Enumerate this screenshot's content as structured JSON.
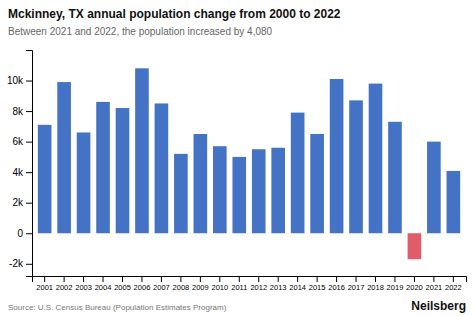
{
  "chart_data": {
    "type": "bar",
    "title": "Mckinney, TX annual population change from 2000 to 2022",
    "subtitle": "Between 2021 and 2022, the population increased by 4,080",
    "annotations": [
      "Source: U.S. Census Bureau (Population Estimates Program)",
      "Neilsberg"
    ],
    "categories": [
      "2001",
      "2002",
      "2003",
      "2004",
      "2005",
      "2006",
      "2007",
      "2008",
      "2009",
      "2010",
      "2011",
      "2012",
      "2013",
      "2014",
      "2015",
      "2016",
      "2017",
      "2018",
      "2019",
      "2020",
      "2021",
      "2022"
    ],
    "values": [
      7100,
      9900,
      6600,
      8600,
      8200,
      10800,
      8500,
      5200,
      6500,
      5700,
      5000,
      5500,
      5600,
      7900,
      6500,
      10100,
      8700,
      9800,
      7300,
      -1700,
      6000,
      4080
    ],
    "colors": [
      "#4472C4",
      "#4472C4",
      "#4472C4",
      "#4472C4",
      "#4472C4",
      "#4472C4",
      "#4472C4",
      "#4472C4",
      "#4472C4",
      "#4472C4",
      "#4472C4",
      "#4472C4",
      "#4472C4",
      "#4472C4",
      "#4472C4",
      "#4472C4",
      "#4472C4",
      "#4472C4",
      "#4472C4",
      "#E05C6A",
      "#4472C4",
      "#4472C4"
    ],
    "ylim": [
      -2800,
      12000
    ],
    "yticks": [
      {
        "value": -2000,
        "label": "-2k"
      },
      0,
      {
        "value": 2000,
        "label": "2k"
      },
      {
        "value": 4000,
        "label": "4k"
      },
      {
        "value": 6000,
        "label": "6k"
      },
      {
        "value": 8000,
        "label": "8k"
      },
      {
        "value": 10000,
        "label": "10k"
      }
    ],
    "grid": false
  }
}
